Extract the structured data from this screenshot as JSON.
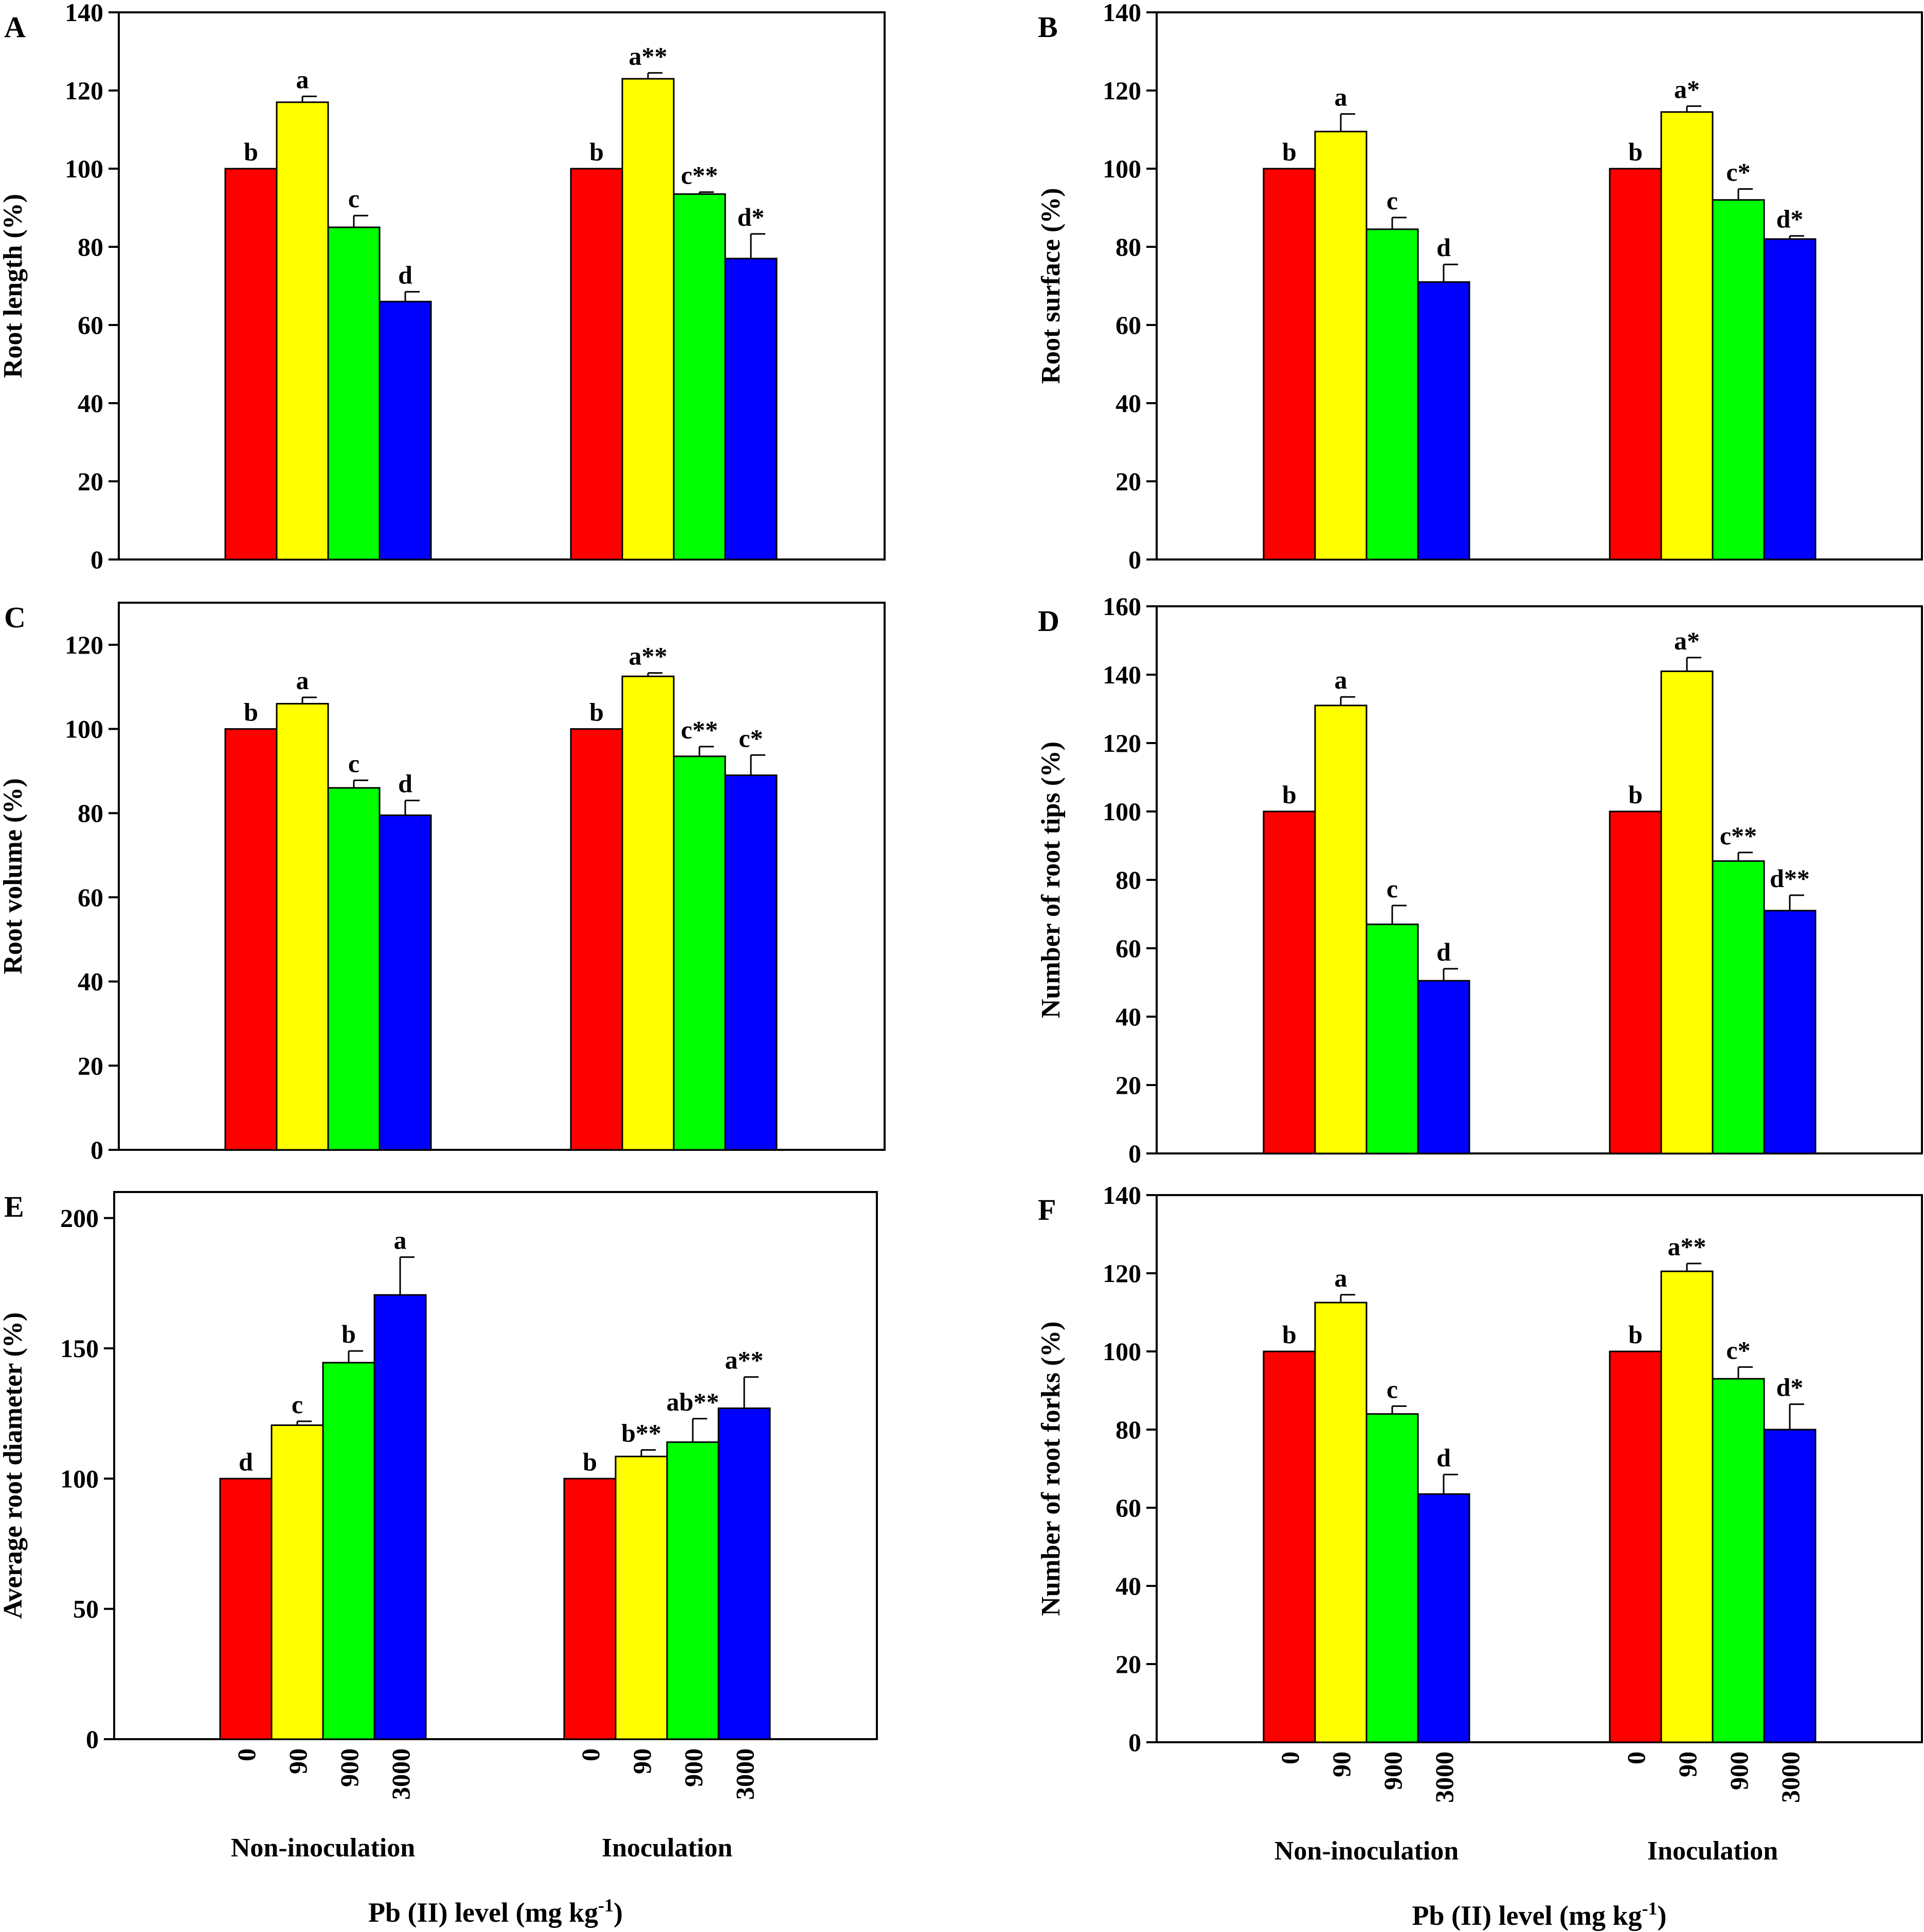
{
  "figure": {
    "shared_xlabel": "Pb (II) level (mg kg",
    "shared_xlabel_sup": "-1",
    "shared_xlabel_end": ")"
  },
  "colors": {
    "0": "#ff0000",
    "90": "#ffff00",
    "900": "#00ff00",
    "3000": "#0000ff"
  },
  "chart_data": [
    {
      "panel": "A",
      "type": "bar",
      "ylabel": "Root length (%)",
      "ylim": [
        0,
        140
      ],
      "yticks": [
        0,
        20,
        40,
        60,
        80,
        100,
        120,
        140
      ],
      "groups": [
        "Non-inoculation",
        "Inoculation"
      ],
      "levels": [
        "0",
        "90",
        "900",
        "3000"
      ],
      "series": [
        {
          "group": "Non-inoculation",
          "values": [
            100,
            117,
            85,
            66
          ],
          "errors": [
            0,
            1.5,
            3,
            2.5
          ],
          "labels": [
            "b",
            "a",
            "c",
            "d"
          ]
        },
        {
          "group": "Inoculation",
          "values": [
            100,
            123,
            93.5,
            77
          ],
          "errors": [
            0,
            1.5,
            0.5,
            6.3
          ],
          "labels": [
            "b",
            "a**",
            "c**",
            "d*"
          ]
        }
      ]
    },
    {
      "panel": "B",
      "type": "bar",
      "ylabel": "Root surface (%)",
      "ylim": [
        0,
        140
      ],
      "yticks": [
        0,
        20,
        40,
        60,
        80,
        100,
        120,
        140
      ],
      "groups": [
        "Non-inoculation",
        "Inoculation"
      ],
      "levels": [
        "0",
        "90",
        "900",
        "3000"
      ],
      "series": [
        {
          "group": "Non-inoculation",
          "values": [
            100,
            109.5,
            84.5,
            71
          ],
          "errors": [
            0,
            4.5,
            3,
            4.5
          ],
          "labels": [
            "b",
            "a",
            "c",
            "d"
          ]
        },
        {
          "group": "Inoculation",
          "values": [
            100,
            114.5,
            92,
            82
          ],
          "errors": [
            0,
            1.5,
            2.8,
            0.8
          ],
          "labels": [
            "b",
            "a*",
            "c*",
            "d*"
          ]
        }
      ]
    },
    {
      "panel": "C",
      "type": "bar",
      "ylabel": "Root volume (%)",
      "ylim": [
        0,
        130
      ],
      "yticks": [
        0,
        20,
        40,
        60,
        80,
        100,
        120
      ],
      "groups": [
        "Non-inoculation",
        "Inoculation"
      ],
      "levels": [
        "0",
        "90",
        "900",
        "3000"
      ],
      "series": [
        {
          "group": "Non-inoculation",
          "values": [
            100,
            106,
            86,
            79.5
          ],
          "errors": [
            0,
            1.5,
            1.8,
            3.5
          ],
          "labels": [
            "b",
            "a",
            "c",
            "d"
          ]
        },
        {
          "group": "Inoculation",
          "values": [
            100,
            112.5,
            93.5,
            89
          ],
          "errors": [
            0,
            0.8,
            2.3,
            4.8
          ],
          "labels": [
            "b",
            "a**",
            "c**",
            "c*"
          ]
        }
      ]
    },
    {
      "panel": "D",
      "type": "bar",
      "ylabel": "Number of root tips (%)",
      "ylim": [
        0,
        160
      ],
      "yticks": [
        0,
        20,
        40,
        60,
        80,
        100,
        120,
        140,
        160
      ],
      "groups": [
        "Non-inoculation",
        "Inoculation"
      ],
      "levels": [
        "0",
        "90",
        "900",
        "3000"
      ],
      "series": [
        {
          "group": "Non-inoculation",
          "values": [
            100,
            131,
            67,
            50.5
          ],
          "errors": [
            0,
            2.5,
            5.5,
            3.5
          ],
          "labels": [
            "b",
            "a",
            "c",
            "d"
          ]
        },
        {
          "group": "Inoculation",
          "values": [
            100,
            141,
            85.5,
            71
          ],
          "errors": [
            0,
            4,
            2.5,
            4.5
          ],
          "labels": [
            "b",
            "a*",
            "c**",
            "d**"
          ]
        }
      ]
    },
    {
      "panel": "E",
      "type": "bar",
      "ylabel": "Average root diameter (%)",
      "ylim": [
        0,
        210
      ],
      "yticks": [
        0,
        50,
        100,
        150,
        200
      ],
      "groups": [
        "Non-inoculation",
        "Inoculation"
      ],
      "levels": [
        "0",
        "90",
        "900",
        "3000"
      ],
      "series": [
        {
          "group": "Non-inoculation",
          "values": [
            100,
            120.5,
            144.5,
            170.5
          ],
          "errors": [
            0,
            1.5,
            4.5,
            14.5
          ],
          "labels": [
            "d",
            "c",
            "b",
            "a"
          ]
        },
        {
          "group": "Inoculation",
          "values": [
            100,
            108.5,
            114,
            127
          ],
          "errors": [
            0,
            2.5,
            9,
            12
          ],
          "labels": [
            "b",
            "b**",
            "ab**",
            "a**"
          ]
        }
      ]
    },
    {
      "panel": "F",
      "type": "bar",
      "ylabel": "Number of root forks (%)",
      "ylim": [
        0,
        140
      ],
      "yticks": [
        0,
        20,
        40,
        60,
        80,
        100,
        120,
        140
      ],
      "groups": [
        "Non-inoculation",
        "Inoculation"
      ],
      "levels": [
        "0",
        "90",
        "900",
        "3000"
      ],
      "series": [
        {
          "group": "Non-inoculation",
          "values": [
            100,
            112.5,
            84,
            63.5
          ],
          "errors": [
            0,
            2,
            2,
            5
          ],
          "labels": [
            "b",
            "a",
            "c",
            "d"
          ]
        },
        {
          "group": "Inoculation",
          "values": [
            100,
            120.5,
            93,
            80
          ],
          "errors": [
            0,
            2,
            3,
            6.5
          ],
          "labels": [
            "b",
            "a**",
            "c*",
            "d*"
          ]
        }
      ]
    }
  ]
}
